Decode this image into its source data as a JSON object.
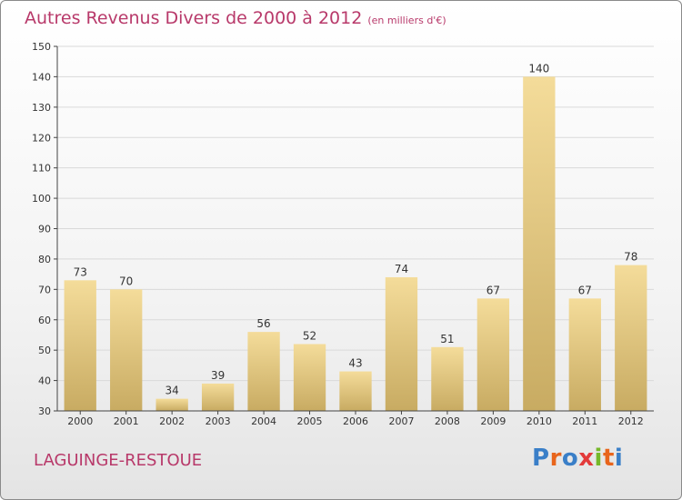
{
  "header": {
    "title": "Autres Revenus Divers de 2000 à 2012",
    "subtitle": "(en milliers d'€)"
  },
  "footer": {
    "city": "LAGUINGE-RESTOUE",
    "logo": {
      "letters": [
        "P",
        "r",
        "o",
        "x",
        "i",
        "t",
        "i"
      ],
      "colors": [
        "#3a7fc8",
        "#e8651c",
        "#3a7fc8",
        "#e33a3a",
        "#76b82a",
        "#e8651c",
        "#3a7fc8"
      ]
    }
  },
  "colors": {
    "title": "#b8396a",
    "bar_light": "#f4dc9a",
    "bar_dark": "#c8ab62",
    "axis": "#444444",
    "grid": "#d9d9d9"
  },
  "chart_data": {
    "type": "bar",
    "title": "Autres Revenus Divers de 2000 à 2012",
    "subtitle": "(en milliers d'€)",
    "categories": [
      "2000",
      "2001",
      "2002",
      "2003",
      "2004",
      "2005",
      "2006",
      "2007",
      "2008",
      "2009",
      "2010",
      "2011",
      "2012"
    ],
    "values": [
      73,
      70,
      34,
      39,
      56,
      52,
      43,
      74,
      51,
      67,
      140,
      67,
      78
    ],
    "ylim": [
      30,
      150
    ],
    "yticks": [
      30,
      40,
      50,
      60,
      70,
      80,
      90,
      100,
      110,
      120,
      130,
      140,
      150
    ],
    "grid": "horizontal",
    "xlabel": "",
    "ylabel": ""
  }
}
